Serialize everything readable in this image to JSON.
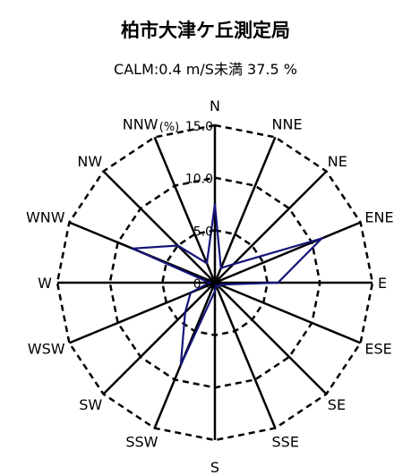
{
  "chart_data": {
    "type": "radar",
    "title": "柏市大津ケ丘測定局",
    "subtitle": "CALM:0.4 m/S未満 37.5 %",
    "unit_label": "(%)",
    "rlim": [
      0,
      15
    ],
    "ring_ticks": [
      "0.0",
      "5.0",
      "10.0",
      "15.0"
    ],
    "ring_values": [
      0,
      5,
      10,
      15
    ],
    "directions": [
      "N",
      "NNE",
      "NE",
      "ENE",
      "E",
      "ESE",
      "SE",
      "SSE",
      "S",
      "SSW",
      "SW",
      "WSW",
      "W",
      "WNW",
      "NW",
      "NNW"
    ],
    "series": [
      {
        "values": [
          7.5,
          1.5,
          2.5,
          11.0,
          6.0,
          0.5,
          0.5,
          0.3,
          0.8,
          8.5,
          4.0,
          2.5,
          0.5,
          8.5,
          5.0,
          2.0
        ]
      }
    ],
    "series_color": "#14147a",
    "grid": true
  }
}
